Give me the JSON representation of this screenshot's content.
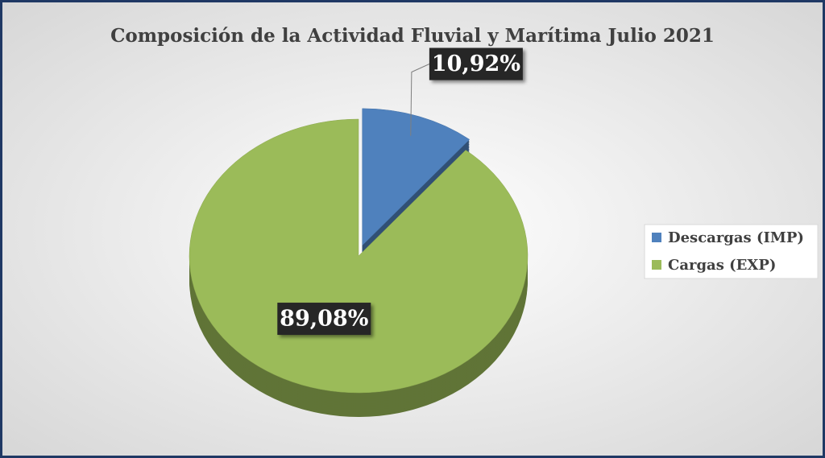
{
  "chart_data": {
    "type": "pie",
    "title": "Composición de la Actividad Fluvial y Marítima Julio 2021",
    "categories": [
      "Descargas (IMP)",
      "Cargas (EXP)"
    ],
    "values": [
      10.92,
      89.08
    ],
    "value_labels": [
      "10,92%",
      "89,08%"
    ],
    "colors": [
      "#4f81bd",
      "#9bbb59"
    ],
    "legend": "right"
  }
}
